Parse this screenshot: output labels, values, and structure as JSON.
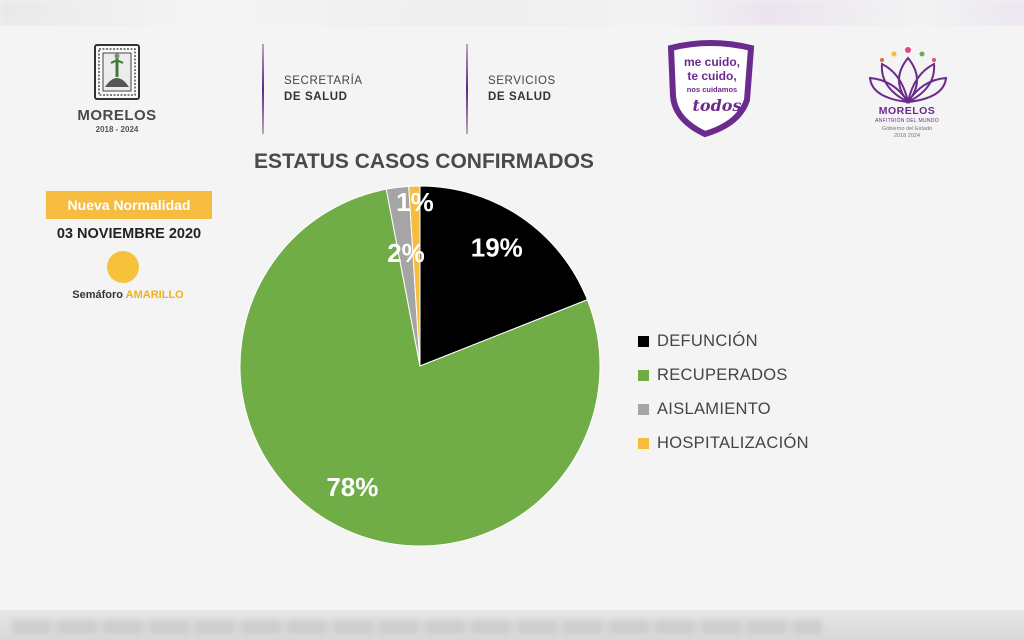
{
  "header": {
    "state_name": "MORELOS",
    "state_years": "2018 - 2024",
    "secretaria_line1": "SECRETARÍA",
    "secretaria_line2": "DE SALUD",
    "servicios_line1": "SERVICIOS",
    "servicios_line2": "DE SALUD",
    "campaign_line1": "me cuido,",
    "campaign_line2": "te cuido,",
    "campaign_line3": "nos cuidamos",
    "campaign_line4": "todos",
    "gov_name": "MORELOS",
    "gov_slogan": "ANFITRIÓN DEL MUNDO",
    "gov_line1": "Gobierno del Estado",
    "gov_line2": "2018 2024"
  },
  "info": {
    "badge": "Nueva Normalidad",
    "date": "03 NOVIEMBRE 2020",
    "semaforo_label": "Semáforo",
    "semaforo_value": "AMARILLO"
  },
  "colors": {
    "defuncion": "#000000",
    "recuperados": "#70ad47",
    "aislamiento": "#a5a5a5",
    "hospitalizacion": "#f5bc40",
    "purple": "#6b2b8d",
    "badge": "#f5bc40"
  },
  "chart_data": {
    "type": "pie",
    "title": "ESTATUS CASOS CONFIRMADOS",
    "categories": [
      "DEFUNCIÓN",
      "RECUPERADOS",
      "AISLAMIENTO",
      "HOSPITALIZACIÓN"
    ],
    "values": [
      19,
      78,
      2,
      1
    ],
    "labels": [
      "19%",
      "78%",
      "2%",
      "1%"
    ],
    "colors": [
      "#000000",
      "#70ad47",
      "#a5a5a5",
      "#f5bc40"
    ],
    "legend": "right",
    "start": "12 o'clock",
    "direction": "clockwise"
  }
}
